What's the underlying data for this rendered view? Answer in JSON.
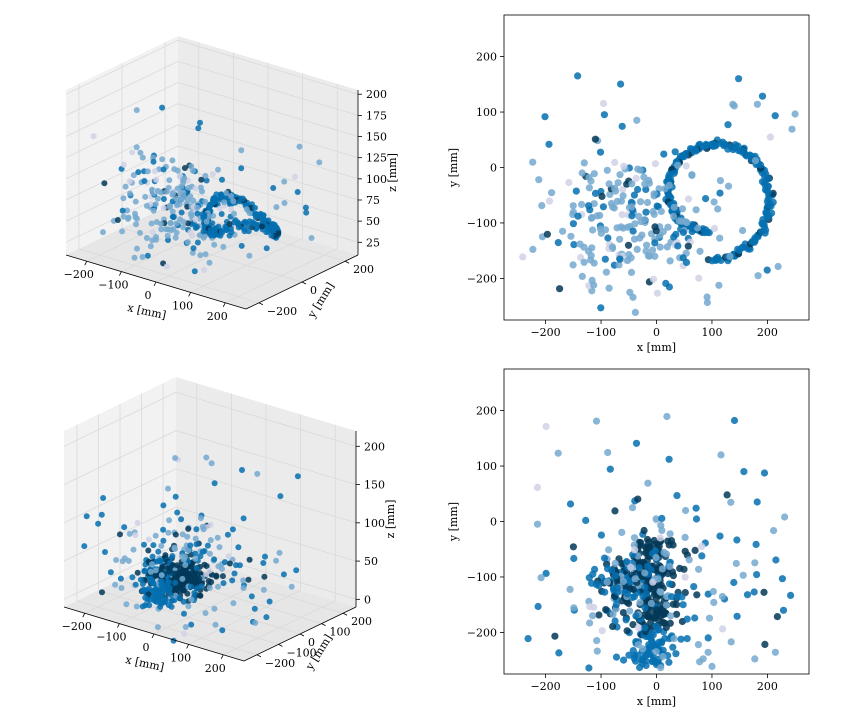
{
  "figure": {
    "colors": {
      "dark": "#023858",
      "mid": "#0570b0",
      "light": "#74a9cf",
      "pale": "#d0d1e6",
      "pane_left": "#f2f2f2",
      "pane_right": "#ebebeb",
      "pane_floor": "#e6e6e6",
      "grid": "#d9d9d9"
    }
  },
  "chart_data": [
    {
      "type": "scatter",
      "projection": "3d",
      "xlabel": "x [mm]",
      "ylabel": "y [mm]",
      "zlabel": "z [mm]",
      "x_ticks": [
        "−200",
        "−100",
        "0",
        "100",
        "200"
      ],
      "y_ticks": [
        "−200",
        "0",
        "200"
      ],
      "z_ticks": [
        "25",
        "50",
        "75",
        "100",
        "125",
        "150",
        "175",
        "200"
      ],
      "xlim": [
        -260,
        260
      ],
      "ylim": [
        -260,
        260
      ],
      "zlim": [
        10,
        205
      ],
      "grid": true,
      "pattern": "spiral track in x-y (center ≈ (100,-50), radius ≈ 115) at z ≈ 60–90 plus diffuse cluster near x≈-50,y≈-100",
      "colormap": "PuBu"
    },
    {
      "type": "scatter",
      "xlabel": "x [mm]",
      "ylabel": "y [mm]",
      "x_ticks": [
        "−200",
        "−100",
        "0",
        "100",
        "200"
      ],
      "y_ticks": [
        "200",
        "100",
        "0",
        "−100",
        "−200"
      ],
      "xlim": [
        -275,
        275
      ],
      "ylim": [
        -275,
        275
      ],
      "series_note": "projection of spiral event onto x-y plane",
      "colormap": "PuBu"
    },
    {
      "type": "scatter",
      "projection": "3d",
      "xlabel": "x [mm]",
      "ylabel": "y [mm]",
      "zlabel": "z [mm]",
      "x_ticks": [
        "−200",
        "−100",
        "0",
        "100",
        "200"
      ],
      "y_ticks": [
        "−200",
        "−100",
        "0",
        "100",
        "200"
      ],
      "z_ticks": [
        "0",
        "50",
        "100",
        "150",
        "200"
      ],
      "xlim": [
        -260,
        260
      ],
      "ylim": [
        -260,
        260
      ],
      "zlim": [
        -10,
        220
      ],
      "grid": true,
      "pattern": "dense cluster near (0,-100) with spray of points",
      "colormap": "PuBu"
    },
    {
      "type": "scatter",
      "xlabel": "x [mm]",
      "ylabel": "y [mm]",
      "x_ticks": [
        "−200",
        "−100",
        "0",
        "100",
        "200"
      ],
      "y_ticks": [
        "200",
        "100",
        "0",
        "−100",
        "−200"
      ],
      "xlim": [
        -275,
        275
      ],
      "ylim": [
        -275,
        275
      ],
      "series_note": "projection of cluster event onto x-y plane",
      "colormap": "PuBu"
    }
  ]
}
